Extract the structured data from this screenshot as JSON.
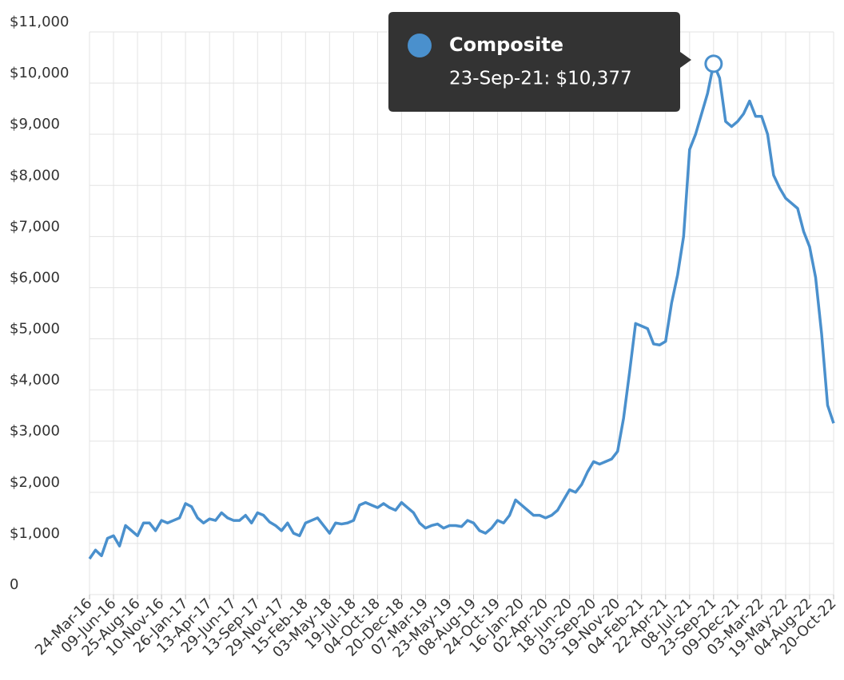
{
  "chart_data": {
    "type": "line",
    "categories": [
      "24-Mar-16",
      null,
      null,
      null,
      "09-Jun-16",
      null,
      null,
      null,
      "25-Aug-16",
      null,
      null,
      null,
      "10-Nov-16",
      null,
      null,
      null,
      "26-Jan-17",
      null,
      null,
      null,
      "13-Apr-17",
      null,
      null,
      null,
      "29-Jun-17",
      null,
      null,
      null,
      "13-Sep-17",
      null,
      null,
      null,
      "29-Nov-17",
      null,
      null,
      null,
      "15-Feb-18",
      null,
      null,
      null,
      "03-May-18",
      null,
      null,
      null,
      "19-Jul-18",
      null,
      null,
      null,
      "04-Oct-18",
      null,
      null,
      null,
      "20-Dec-18",
      null,
      null,
      null,
      "07-Mar-19",
      null,
      null,
      null,
      "23-May-19",
      null,
      null,
      null,
      "08-Aug-19",
      null,
      null,
      null,
      "24-Oct-19",
      null,
      null,
      null,
      "16-Jan-20",
      null,
      null,
      null,
      "02-Apr-20",
      null,
      null,
      null,
      "18-Jun-20",
      null,
      null,
      null,
      "03-Sep-20",
      null,
      null,
      null,
      "19-Nov-20",
      null,
      null,
      null,
      "04-Feb-21",
      null,
      null,
      null,
      "22-Apr-21",
      null,
      null,
      null,
      "08-Jul-21",
      null,
      null,
      null,
      "23-Sep-21",
      null,
      null,
      null,
      "09-Dec-21",
      null,
      null,
      null,
      "03-Mar-22",
      null,
      null,
      null,
      "19-May-22",
      null,
      null,
      null,
      "04-Aug-22",
      null,
      null,
      null,
      "20-Oct-22"
    ],
    "series": [
      {
        "name": "Composite",
        "color": "#4a90cd",
        "values": [
          700,
          870,
          760,
          1100,
          1150,
          950,
          1350,
          1250,
          1150,
          1400,
          1400,
          1250,
          1450,
          1400,
          1450,
          1500,
          1780,
          1720,
          1500,
          1400,
          1480,
          1450,
          1600,
          1500,
          1450,
          1450,
          1550,
          1400,
          1600,
          1550,
          1420,
          1350,
          1250,
          1400,
          1200,
          1150,
          1400,
          1450,
          1500,
          1350,
          1200,
          1400,
          1380,
          1400,
          1450,
          1750,
          1800,
          1750,
          1700,
          1780,
          1700,
          1650,
          1800,
          1700,
          1600,
          1400,
          1300,
          1350,
          1380,
          1300,
          1350,
          1350,
          1330,
          1450,
          1400,
          1250,
          1200,
          1300,
          1450,
          1400,
          1550,
          1850,
          1750,
          1650,
          1550,
          1550,
          1500,
          1550,
          1650,
          1850,
          2050,
          2000,
          2150,
          2400,
          2600,
          2550,
          2600,
          2650,
          2800,
          3450,
          4350,
          5300,
          5250,
          5200,
          4900,
          4880,
          4950,
          5700,
          6250,
          7000,
          8700,
          9000,
          9400,
          9800,
          10377,
          10100,
          9250,
          9150,
          9250,
          9400,
          9650,
          9350,
          9350,
          9000,
          8200,
          7950,
          7750,
          7650,
          7550,
          7100,
          6800,
          6200,
          5100,
          3700,
          3350
        ]
      }
    ],
    "ylim": [
      0,
      11000
    ],
    "yticks": [
      0,
      {
        "value": 1000,
        "label": "$1,000"
      },
      {
        "value": 2000,
        "label": "$2,000"
      },
      {
        "value": 3000,
        "label": "$3,000"
      },
      {
        "value": 4000,
        "label": "$4,000"
      },
      {
        "value": 5000,
        "label": "$5,000"
      },
      {
        "value": 6000,
        "label": "$6,000"
      },
      {
        "value": 7000,
        "label": "$7,000"
      },
      {
        "value": 8000,
        "label": "$8,000"
      },
      {
        "value": 9000,
        "label": "$9,000"
      },
      {
        "value": 10000,
        "label": "$10,000"
      },
      {
        "value": 11000,
        "label": "$11,000"
      }
    ],
    "grid": true,
    "tooltip": {
      "text": "23-Sep-21: $10,377"
    }
  }
}
